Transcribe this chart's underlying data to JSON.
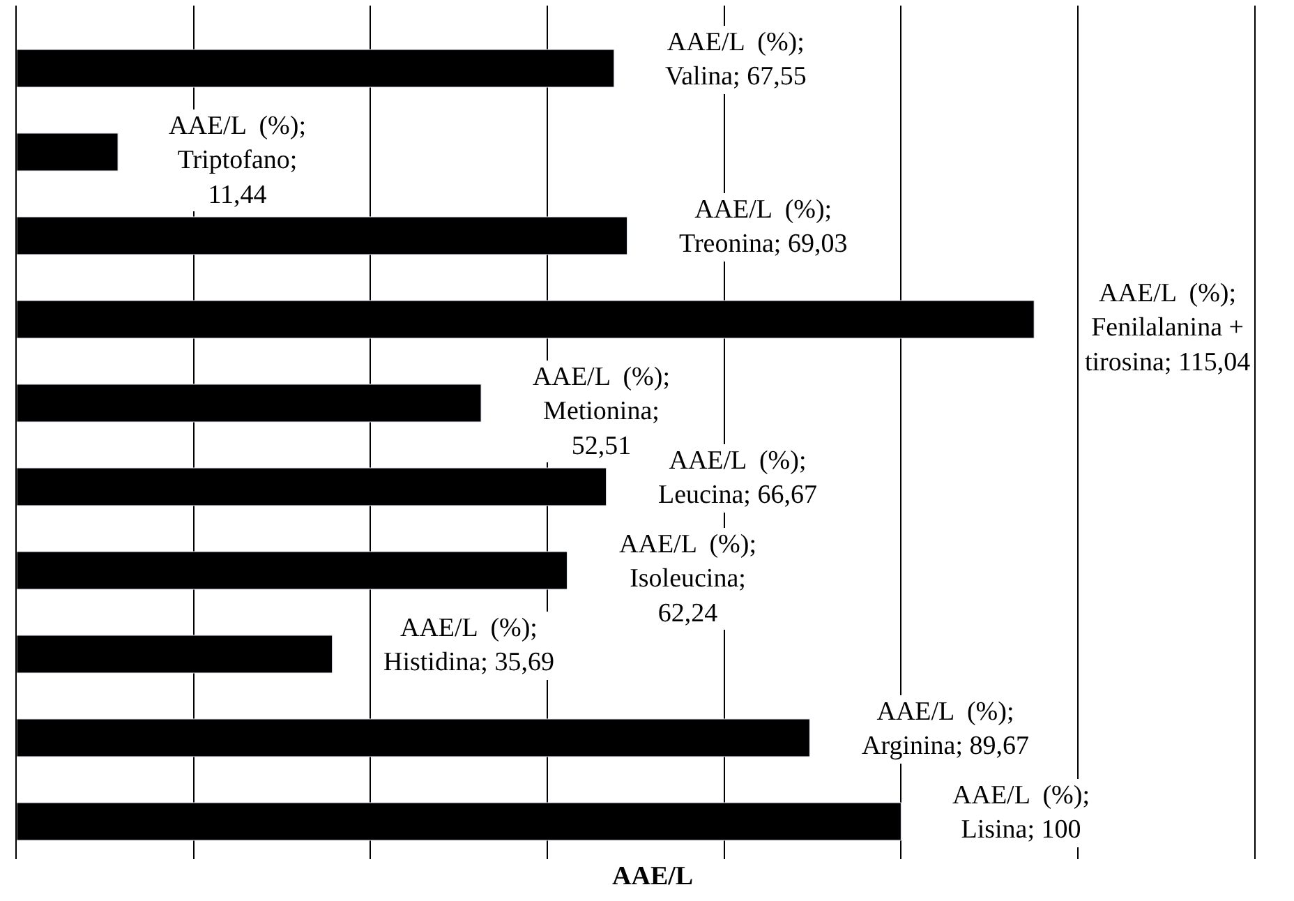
{
  "chart_data": {
    "type": "bar",
    "orientation": "horizontal",
    "xlabel": "AAE/L",
    "categories": [
      null,
      null,
      null,
      null,
      null,
      null,
      null,
      null,
      null,
      null
    ],
    "series": [
      {
        "color": "#000000",
        "values": [
          67.55,
          11.44,
          69.03,
          115.04,
          52.51,
          66.67,
          62.24,
          35.69,
          89.67,
          100
        ],
        "value_labels": [
          "AAE/L  (%);\nValina; 67,55",
          "AAE/L  (%);\nTriptofano;\n11,44",
          "AAE/L  (%);\nTreonina; 69,03",
          "AAE/L  (%);\nFenilalanina +\ntirosina; 115,04",
          "AAE/L  (%);\nMetionina;\n52,51",
          "AAE/L  (%);\nLeucina; 66,67",
          "AAE/L  (%);\nIsoleucina;\n62,24",
          "AAE/L  (%);\nHistidina; 35,69",
          "AAE/L  (%);\nArginina; 89,67",
          "AAE/L  (%);\nLisina; 100"
        ]
      }
    ],
    "grid": "x",
    "tick_labels": false
  }
}
